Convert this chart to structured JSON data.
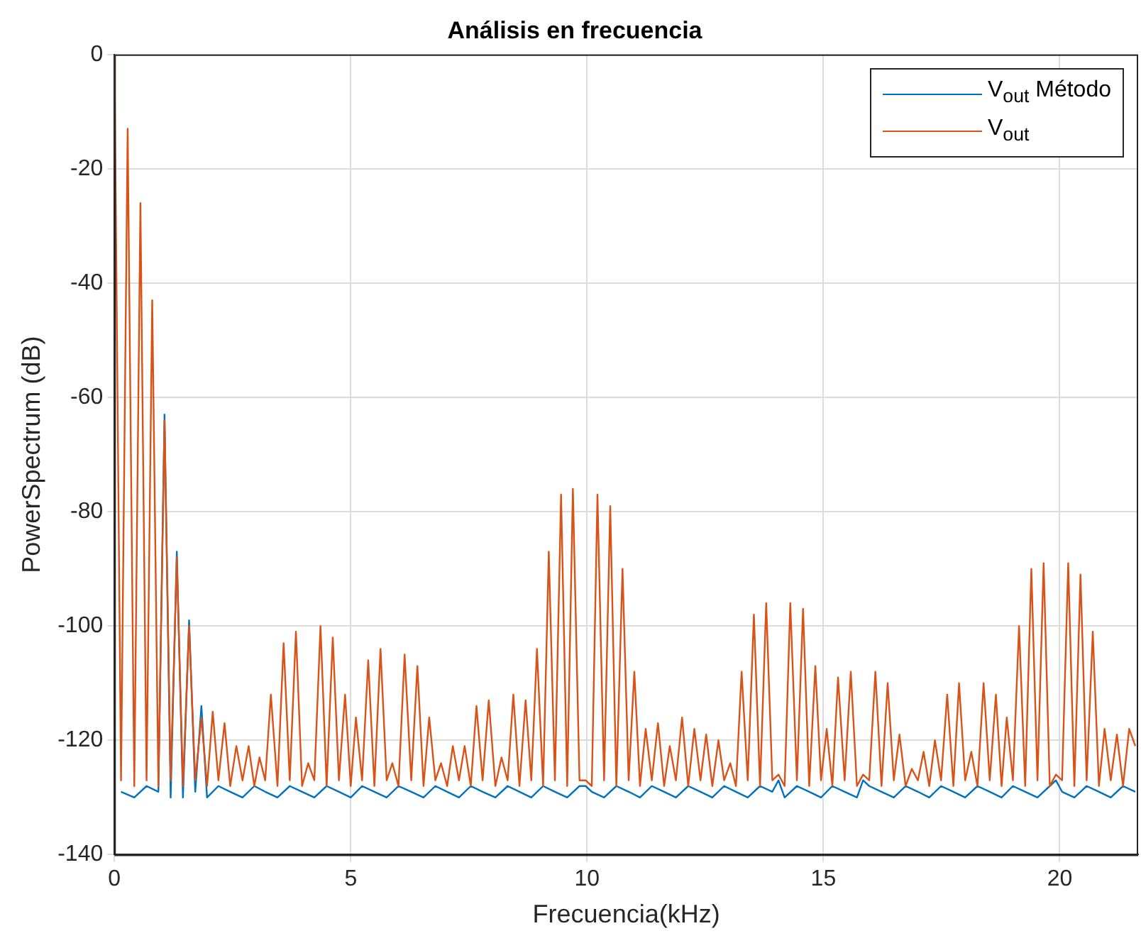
{
  "chart_data": {
    "type": "line",
    "title": "Análisis en frecuencia",
    "xlabel": "Frecuencia(kHz)",
    "ylabel": "PowerSpectrum (dB)",
    "x": [
      0,
      0.14,
      0.28,
      0.42,
      0.55,
      0.68,
      0.8,
      0.93,
      1.06,
      1.19,
      1.32,
      1.45,
      1.58,
      1.71,
      1.84,
      1.96,
      2.08,
      2.2,
      2.33,
      2.45,
      2.58,
      2.71,
      2.84,
      2.96,
      3.07,
      3.19,
      3.31,
      3.45,
      3.58,
      3.71,
      3.84,
      3.97,
      4.1,
      4.23,
      4.36,
      4.49,
      4.62,
      4.75,
      4.88,
      5.0,
      5.11,
      5.24,
      5.37,
      5.5,
      5.63,
      5.76,
      5.88,
      6.01,
      6.14,
      6.28,
      6.41,
      6.54,
      6.66,
      6.79,
      6.91,
      7.04,
      7.16,
      7.29,
      7.41,
      7.54,
      7.66,
      7.79,
      7.92,
      8.06,
      8.19,
      8.32,
      8.44,
      8.57,
      8.7,
      8.82,
      8.94,
      9.07,
      9.19,
      9.32,
      9.45,
      9.58,
      9.7,
      9.84,
      9.97,
      10.1,
      10.22,
      10.36,
      10.49,
      10.62,
      10.75,
      10.88,
      11.0,
      11.12,
      11.24,
      11.37,
      11.5,
      11.63,
      11.75,
      11.88,
      12.01,
      12.14,
      12.27,
      12.4,
      12.52,
      12.65,
      12.78,
      12.9,
      13.03,
      13.15,
      13.27,
      13.4,
      13.53,
      13.66,
      13.79,
      13.92,
      14.05,
      14.18,
      14.3,
      14.44,
      14.57,
      14.7,
      14.83,
      14.95,
      15.07,
      15.19,
      15.31,
      15.45,
      15.58,
      15.71,
      15.84,
      15.97,
      16.1,
      16.23,
      16.36,
      16.49,
      16.61,
      16.74,
      16.87,
      17.0,
      17.12,
      17.24,
      17.36,
      17.49,
      17.62,
      17.75,
      17.87,
      18.0,
      18.13,
      18.26,
      18.39,
      18.52,
      18.65,
      18.77,
      18.88,
      19.01,
      19.14,
      19.27,
      19.4,
      19.53,
      19.66,
      19.79,
      19.92,
      20.05,
      20.18,
      20.31,
      20.44,
      20.57,
      20.7,
      20.83,
      20.95,
      21.08,
      21.21,
      21.34,
      21.47,
      21.6
    ],
    "series": [
      {
        "name": "V$_{out}$ Método",
        "color": "#0072bd",
        "values": [
          null,
          -129,
          null,
          -130,
          null,
          -128,
          null,
          -129,
          -63,
          -130,
          -87,
          -130,
          -99,
          -129,
          -114,
          -130,
          null,
          -128,
          null,
          -129,
          null,
          -130,
          null,
          -128,
          null,
          -129,
          null,
          -130,
          null,
          -128,
          null,
          -129,
          null,
          -130,
          null,
          -128,
          null,
          -129,
          null,
          -130,
          null,
          -128,
          null,
          -129,
          null,
          -130,
          null,
          -128,
          null,
          -129,
          null,
          -130,
          null,
          -128,
          null,
          -129,
          null,
          -130,
          null,
          -128,
          null,
          -129,
          null,
          -130,
          null,
          -128,
          null,
          -129,
          null,
          -130,
          null,
          -128,
          null,
          -129,
          null,
          -130,
          null,
          -128,
          -128,
          -129,
          null,
          -130,
          null,
          -128,
          null,
          -129,
          null,
          -130,
          null,
          -128,
          null,
          -129,
          null,
          -130,
          null,
          -128,
          null,
          -129,
          null,
          -130,
          null,
          -128,
          null,
          -129,
          null,
          -130,
          null,
          -128,
          null,
          -129,
          -127,
          -130,
          null,
          -128,
          null,
          -129,
          null,
          -130,
          null,
          -128,
          null,
          -129,
          null,
          -130,
          -127,
          -128,
          null,
          -129,
          null,
          -130,
          null,
          -128,
          null,
          -129,
          null,
          -130,
          null,
          -128,
          null,
          -129,
          null,
          -130,
          null,
          -128,
          null,
          -129,
          null,
          -130,
          null,
          -128,
          null,
          -129,
          null,
          -130,
          null,
          -128,
          -127,
          -129,
          null,
          -130,
          null,
          -128,
          null,
          -129,
          null,
          -130,
          null,
          -128,
          null,
          -129
        ]
      },
      {
        "name": "V$_{out}$",
        "color": "#d95319",
        "values": [
          0,
          -127,
          -13,
          -128,
          -26,
          -127,
          -43,
          -128,
          -64,
          -127,
          -88,
          -128,
          -100,
          -127,
          -116,
          -128,
          -115,
          -127,
          -117,
          -128,
          -121,
          -127,
          -121,
          -128,
          -123,
          -127,
          -112,
          -128,
          -103,
          -127,
          -101,
          -128,
          -124,
          -127,
          -100,
          -128,
          -102,
          -127,
          -112,
          -128,
          -116,
          -127,
          -106,
          -128,
          -104,
          -127,
          -124,
          -128,
          -105,
          -127,
          -107,
          -128,
          -116,
          -127,
          -124,
          -128,
          -121,
          -127,
          -121,
          -128,
          -114,
          -127,
          -113,
          -128,
          -123,
          -127,
          -112,
          -128,
          -113,
          -127,
          -104,
          -128,
          -87,
          -127,
          -77,
          -128,
          -76,
          -127,
          -127,
          -128,
          -77,
          -127,
          -79,
          -128,
          -90,
          -127,
          -108,
          -128,
          -118,
          -127,
          -117,
          -128,
          -121,
          -127,
          -116,
          -128,
          -118,
          -127,
          -119,
          -128,
          -120,
          -127,
          -124,
          -128,
          -108,
          -127,
          -98,
          -128,
          -96,
          -127,
          -126,
          -128,
          -96,
          -127,
          -97,
          -128,
          -107,
          -127,
          -118,
          -128,
          -109,
          -127,
          -108,
          -128,
          -126,
          -127,
          -108,
          -128,
          -110,
          -127,
          -119,
          -128,
          -125,
          -127,
          -122,
          -128,
          -120,
          -127,
          -112,
          -128,
          -110,
          -127,
          -122,
          -128,
          -110,
          -127,
          -112,
          -128,
          -116,
          -127,
          -100,
          -128,
          -90,
          -127,
          -89,
          -128,
          -126,
          -127,
          -89,
          -128,
          -91,
          -127,
          -101,
          -128,
          -118,
          -127,
          -119,
          -128,
          -118,
          -121
        ]
      }
    ],
    "xlim": [
      0,
      21.66
    ],
    "xticks": [
      0,
      5,
      10,
      15,
      20
    ],
    "ylim": [
      -140,
      0
    ],
    "yticks": [
      -140,
      -120,
      -100,
      -80,
      -60,
      -40,
      -20,
      0
    ],
    "grid": true,
    "legend": "top right",
    "marker": "none",
    "line_style": "solid"
  }
}
